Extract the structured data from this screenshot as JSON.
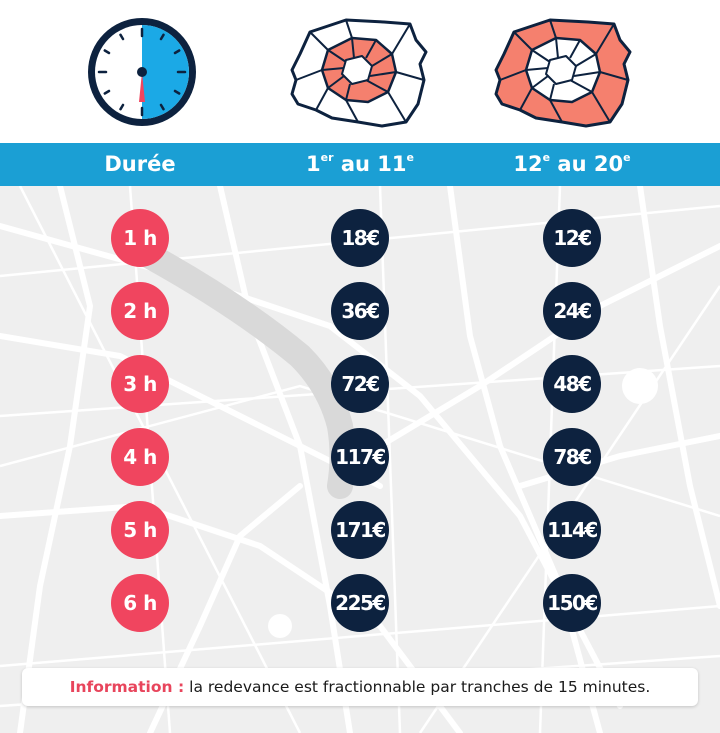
{
  "header": {
    "col_duration": "Durée",
    "col_zone1": {
      "from": "1",
      "from_sup": "er",
      "mid": " au ",
      "to": "11",
      "to_sup": "e"
    },
    "col_zone2": {
      "from": "12",
      "from_sup": "e",
      "mid": " au ",
      "to": "20",
      "to_sup": "e"
    }
  },
  "icons": [
    "clock-icon",
    "paris-map-center-icon",
    "paris-map-outer-icon"
  ],
  "colors": {
    "header_bg": "#1b9fd4",
    "duration_circle": "#f0455f",
    "price_circle": "#0d223f",
    "map_highlight": "#f5806e",
    "info_label": "#e8455c"
  },
  "rows": [
    {
      "duration": "1 h",
      "zone1": "18€",
      "zone2": "12€"
    },
    {
      "duration": "2 h",
      "zone1": "36€",
      "zone2": "24€"
    },
    {
      "duration": "3 h",
      "zone1": "72€",
      "zone2": "48€"
    },
    {
      "duration": "4 h",
      "zone1": "117€",
      "zone2": "78€"
    },
    {
      "duration": "5 h",
      "zone1": "171€",
      "zone2": "114€"
    },
    {
      "duration": "6 h",
      "zone1": "225€",
      "zone2": "150€"
    }
  ],
  "info": {
    "label": "Information :",
    "text": "la redevance est fractionnable par tranches de 15 minutes."
  }
}
